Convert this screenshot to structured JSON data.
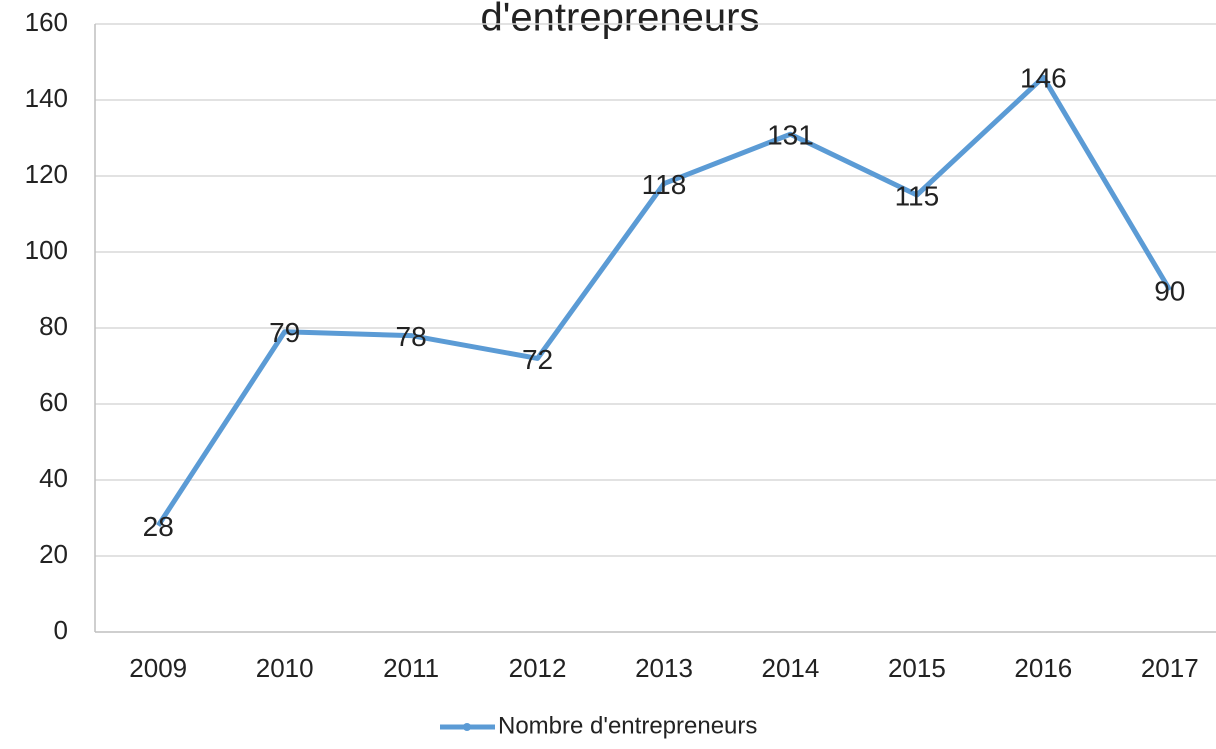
{
  "chart_data": {
    "type": "line",
    "title": "d'entrepreneurs",
    "categories": [
      "2009",
      "2010",
      "2011",
      "2012",
      "2013",
      "2014",
      "2015",
      "2016",
      "2017"
    ],
    "series": [
      {
        "name": "Nombre d'entrepreneurs",
        "color": "#5b9bd5",
        "values": [
          28,
          79,
          78,
          72,
          118,
          131,
          115,
          146,
          90
        ]
      }
    ],
    "ylim": [
      0,
      160
    ],
    "yticks": [
      0,
      20,
      40,
      60,
      80,
      100,
      120,
      140,
      160
    ],
    "grid": true,
    "legend": "bottom"
  }
}
